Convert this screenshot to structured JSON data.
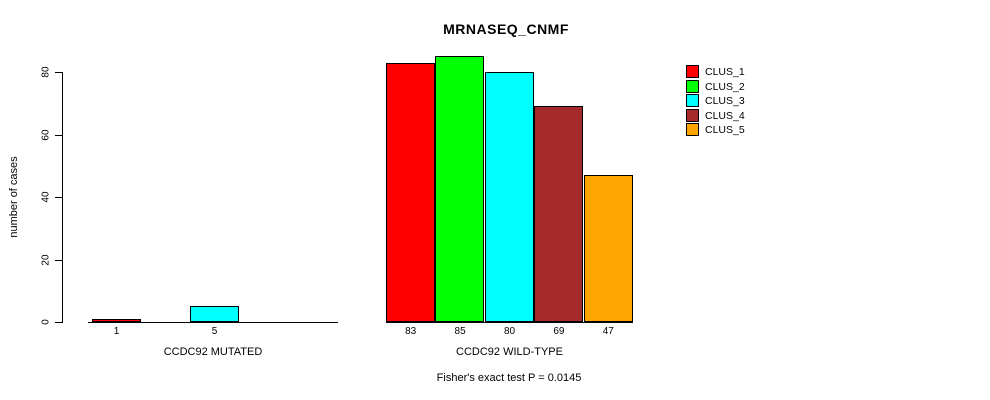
{
  "chart_data": {
    "type": "bar",
    "title": "MRNASEQ_CNMF",
    "ylabel": "number of cases",
    "xlabel": "",
    "ylim": [
      0,
      80
    ],
    "yticks": [
      0,
      20,
      40,
      60,
      80
    ],
    "grid": false,
    "legend_position": "right-outside",
    "legend_entries": [
      {
        "name": "CLUS_1",
        "color": "#FF0000"
      },
      {
        "name": "CLUS_2",
        "color": "#00FF00"
      },
      {
        "name": "CLUS_3",
        "color": "#00FFFF"
      },
      {
        "name": "CLUS_4",
        "color": "#A52A2A"
      },
      {
        "name": "CLUS_5",
        "color": "#FFA500"
      }
    ],
    "categories": [
      "CLUS_1",
      "CLUS_2",
      "CLUS_3",
      "CLUS_4",
      "CLUS_5"
    ],
    "groups": [
      {
        "label": "CCDC92 MUTATED",
        "values": [
          1,
          0,
          5,
          0,
          0
        ],
        "visible_value_labels": [
          "1",
          "5"
        ]
      },
      {
        "label": "CCDC92 WILD-TYPE",
        "values": [
          83,
          85,
          80,
          69,
          47
        ],
        "visible_value_labels": [
          "83",
          "85",
          "80",
          "69",
          "47"
        ]
      }
    ],
    "footnote": "Fisher's exact test P = 0.0145"
  }
}
